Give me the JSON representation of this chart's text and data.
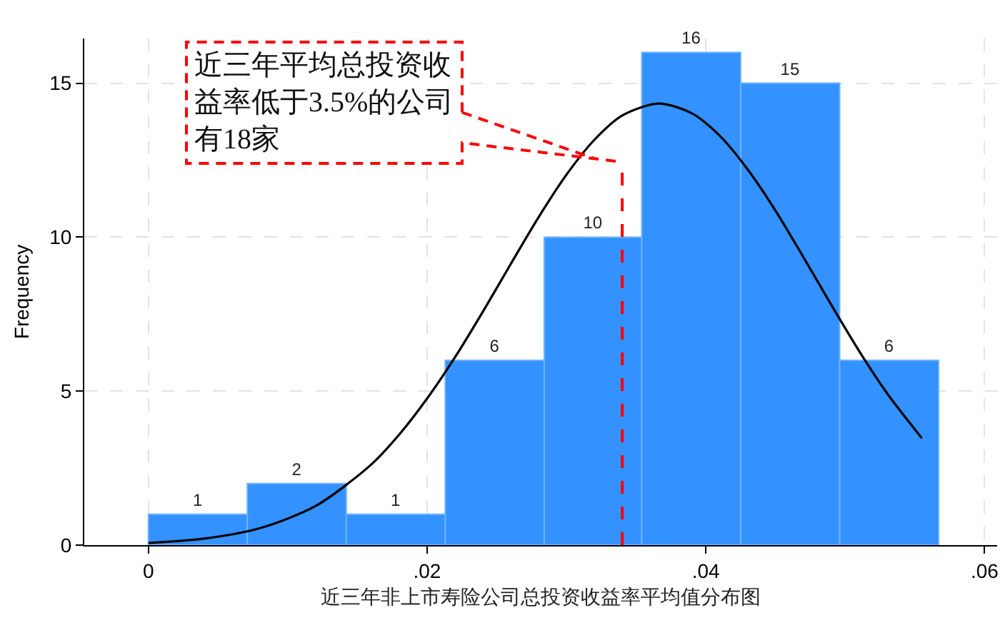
{
  "chart_data": {
    "type": "histogram",
    "xlabel": "近三年非上市寿险公司总投资收益率平均值分布图",
    "ylabel": "Frequency",
    "bins": [
      0,
      0.0071,
      0.0142,
      0.0213,
      0.0284,
      0.0354,
      0.0425,
      0.0496,
      0.0567
    ],
    "series": [
      {
        "color": "#3392ff",
        "values": [
          1,
          2,
          1,
          6,
          10,
          16,
          15,
          6
        ],
        "value_labels": [
          "1",
          "2",
          "1",
          "6",
          "10",
          "16",
          "15",
          "6"
        ]
      },
      {
        "type": "line",
        "color": "#000000",
        "x": [
          0,
          0.004,
          0.008,
          0.012,
          0.016,
          0.018,
          0.02,
          0.022,
          0.024,
          0.026,
          0.028,
          0.03,
          0.032,
          0.034,
          0.0366,
          0.039,
          0.041,
          0.043,
          0.045,
          0.047,
          0.049,
          0.051,
          0.053,
          0.0555
        ],
        "values": [
          0.07,
          0.21,
          0.55,
          1.27,
          2.62,
          3.59,
          4.76,
          6.1,
          7.58,
          9.13,
          10.65,
          12.03,
          13.16,
          13.95,
          14.34,
          14.02,
          13.29,
          12.2,
          10.86,
          9.35,
          7.8,
          6.3,
          4.93,
          3.47
        ]
      }
    ],
    "xlim": [
      -0.0046,
      0.0609
    ],
    "ylim": [
      0,
      16.45
    ],
    "xticks": [
      0,
      {
        "value": 0.02,
        "label": ".02"
      },
      {
        "value": 0.04,
        "label": ".04"
      },
      {
        "value": 0.06,
        "label": ".06"
      }
    ],
    "yticks": [
      0,
      5,
      10,
      15
    ],
    "grid": true,
    "ref_lines": [
      {
        "axis": "x",
        "value": 0.034,
        "color": "#ff0000",
        "line_style": "dashed"
      }
    ],
    "annotations": [
      {
        "text": "近三年平均总投资收益率低于3.5%的公司有18家",
        "x": 0.034,
        "y": 12.44
      }
    ]
  }
}
